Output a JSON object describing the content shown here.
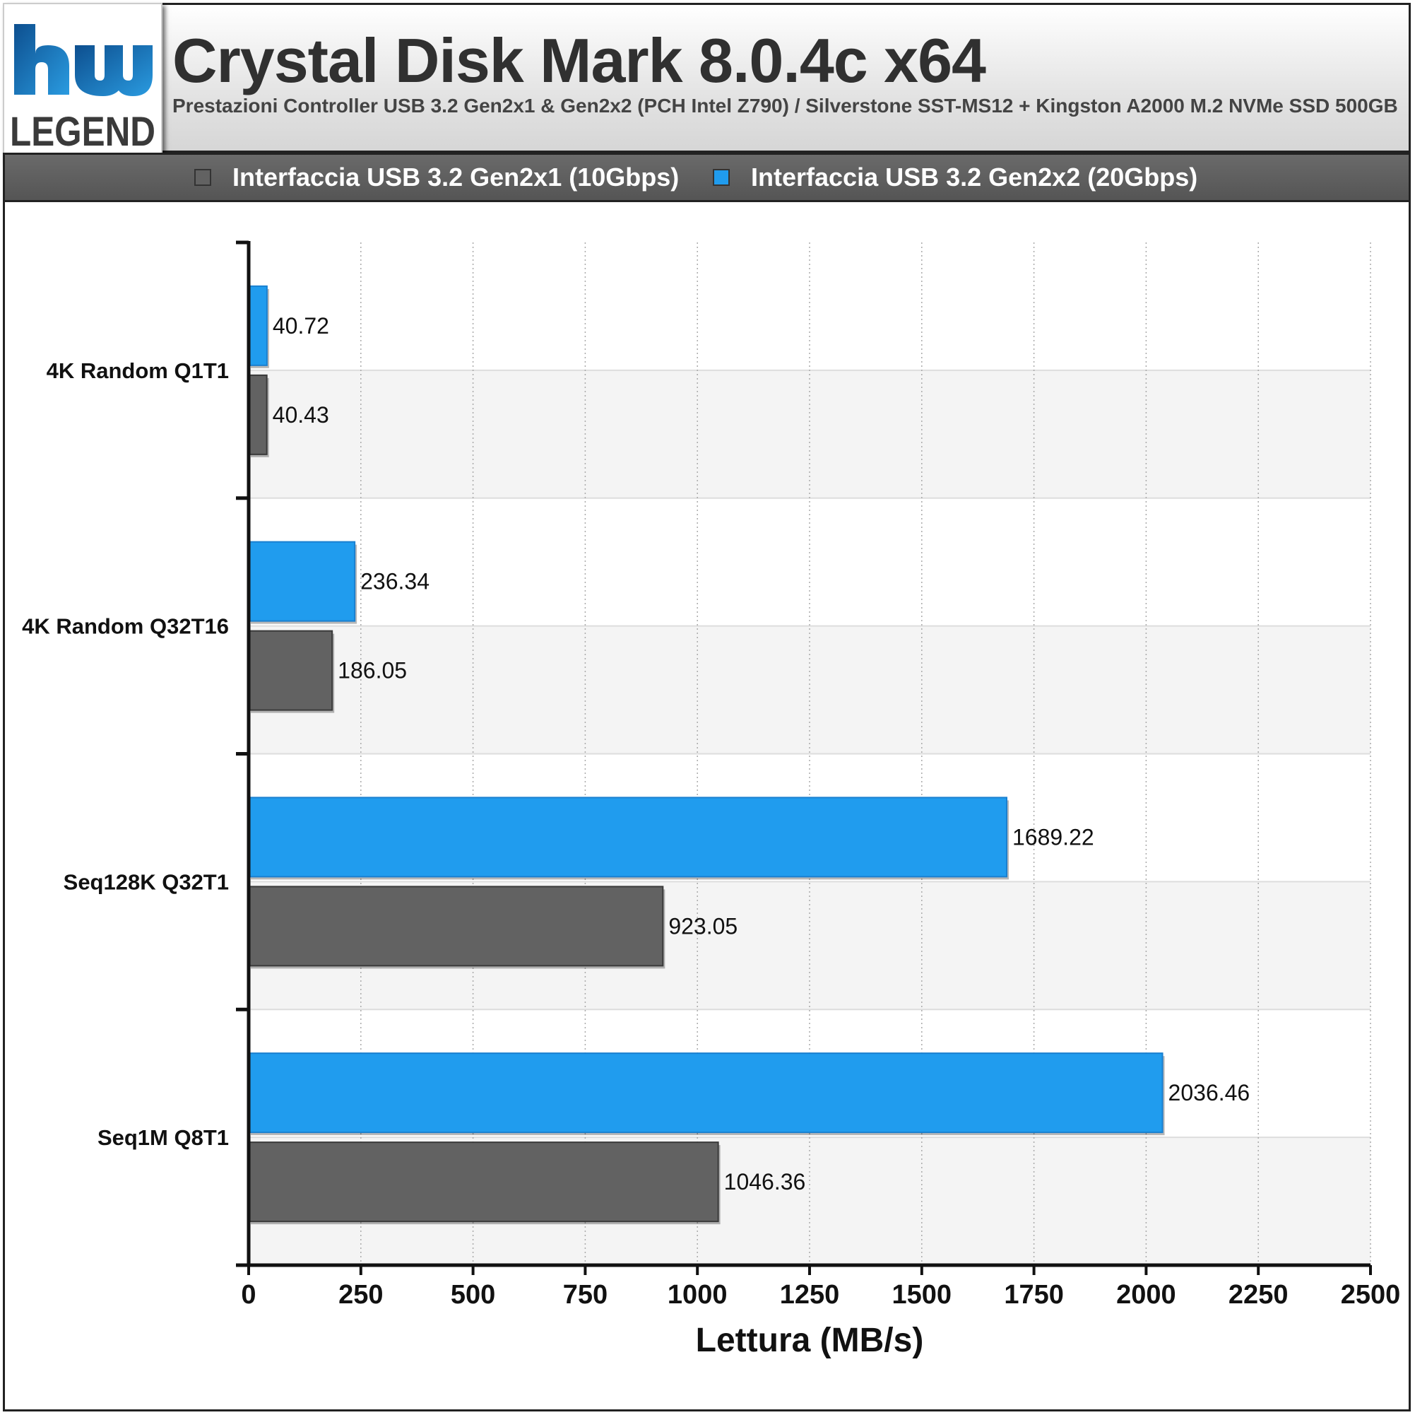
{
  "header": {
    "title": "Crystal Disk Mark 8.0.4c x64",
    "subtitle": "Prestazioni Controller USB 3.2 Gen2x1 & Gen2x2 (PCH Intel Z790) / Silverstone SST-MS12 + Kingston A2000 M.2 NVMe SSD 500GB"
  },
  "logo": {
    "top_text": "hw",
    "bottom_text": "LEGEND",
    "colors": [
      "#1a6fb5",
      "#3a3a3a"
    ]
  },
  "colors": {
    "gen2x1": "#626262",
    "gen2x2": "#209cee",
    "gen2x2_border": "#1a80d0",
    "gen2x1_border": "#3a3a3a",
    "band": "#f4f4f4"
  },
  "chart_data": {
    "type": "bar",
    "orientation": "horizontal",
    "title": "Crystal Disk Mark 8.0.4c x64",
    "subtitle": "Prestazioni Controller USB 3.2 Gen2x1 & Gen2x2 (PCH Intel Z790) / Silverstone SST-MS12 + Kingston A2000 M.2 NVMe SSD 500GB",
    "categories": [
      "4K Random Q1T1",
      "4K Random Q32T16",
      "Seq128K Q32T1",
      "Seq1M Q8T1"
    ],
    "series": [
      {
        "name": "Interfaccia USB 3.2 Gen2x2 (20Gbps)",
        "values": [
          40.72,
          236.34,
          1689.22,
          2036.46
        ],
        "labels": [
          "40.72",
          "236.34",
          "1689.22",
          "2036.46"
        ]
      },
      {
        "name": "Interfaccia USB 3.2 Gen2x1 (10Gbps)",
        "values": [
          40.43,
          186.05,
          923.05,
          1046.36
        ],
        "labels": [
          "40.43",
          "186.05",
          "923.05",
          "1046.36"
        ]
      }
    ],
    "legend_order": [
      "Interfaccia USB 3.2 Gen2x1 (10Gbps)",
      "Interfaccia USB 3.2 Gen2x2 (20Gbps)"
    ],
    "xlabel": "Lettura (MB/s)",
    "ylabel": "",
    "xlim": [
      0,
      2500
    ],
    "xticks": [
      0,
      250,
      500,
      750,
      1000,
      1250,
      1500,
      1750,
      2000,
      2250,
      2500
    ],
    "xtick_labels": [
      "0",
      "250",
      "500",
      "750",
      "1000",
      "1250",
      "1500",
      "1750",
      "2000",
      "2250",
      "2500"
    ],
    "grid": "vertical dotted",
    "legend_position": "top"
  }
}
